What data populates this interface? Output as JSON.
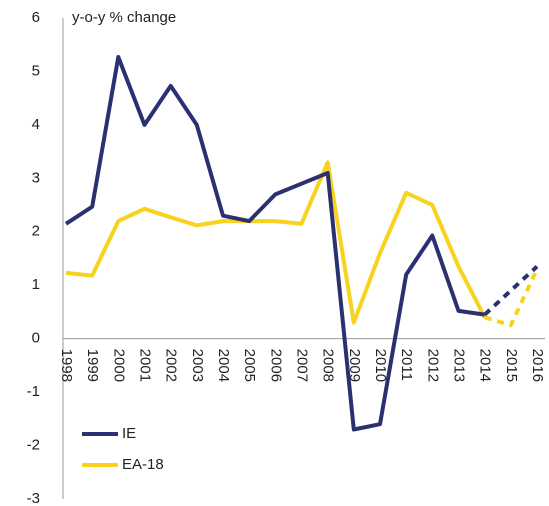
{
  "chart_data": {
    "type": "line",
    "y_axis_label": "y-o-y % change",
    "categories": [
      "1998",
      "1999",
      "2000",
      "2001",
      "2002",
      "2003",
      "2004",
      "2005",
      "2006",
      "2007",
      "2008",
      "2009",
      "2010",
      "2011",
      "2012",
      "2013",
      "2014",
      "2015",
      "2016"
    ],
    "series": [
      {
        "name": "IE",
        "color": "#2b3170",
        "values": [
          2.15,
          2.47,
          5.27,
          4.0,
          4.73,
          4.0,
          2.3,
          2.2,
          2.7,
          2.9,
          3.1,
          -1.7,
          -1.6,
          1.2,
          1.93,
          0.52,
          0.45,
          0.9,
          1.35
        ]
      },
      {
        "name": "EA-18",
        "color": "#f7d21e",
        "values": [
          1.23,
          1.18,
          2.2,
          2.43,
          2.27,
          2.12,
          2.2,
          2.2,
          2.2,
          2.15,
          3.3,
          0.3,
          1.6,
          2.73,
          2.5,
          1.35,
          0.4,
          0.25,
          1.3
        ]
      }
    ],
    "dashed_from": 16,
    "ylim": [
      -3,
      6
    ],
    "yticks": [
      -3,
      -2,
      -1,
      0,
      1,
      2,
      3,
      4,
      5,
      6
    ],
    "grid": false
  }
}
